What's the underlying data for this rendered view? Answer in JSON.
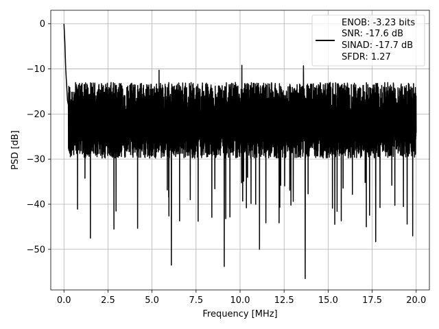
{
  "chart_data": {
    "type": "line",
    "title": "",
    "xlabel": "Frequency [MHz]",
    "ylabel": "PSD [dB]",
    "xlim": [
      -0.75,
      20.75
    ],
    "ylim": [
      -59,
      3
    ],
    "xticks": [
      0.0,
      2.5,
      5.0,
      7.5,
      10.0,
      12.5,
      15.0,
      17.5,
      20.0
    ],
    "xtick_labels": [
      "0.0",
      "2.5",
      "5.0",
      "7.5",
      "10.0",
      "12.5",
      "15.0",
      "17.5",
      "20.0"
    ],
    "yticks": [
      0,
      -10,
      -20,
      -30,
      -40,
      -50
    ],
    "ytick_labels": [
      "0",
      "−10",
      "−20",
      "−30",
      "−40",
      "−50"
    ],
    "grid": true,
    "legend_position": "top-right",
    "legend_lines": [
      "ENOB: -3.23 bits",
      "SNR: -17.6 dB",
      "SINAD: -17.7 dB",
      "SFDR: 1.27"
    ],
    "line_color": "#000000",
    "series": [
      {
        "x_start": 0.0,
        "x_end": 20.0,
        "noise_floor_db": -22,
        "upper_envelope_db": -13,
        "lower_envelope_db": -30,
        "peaks": [
          [
            0.0,
            0.0
          ],
          [
            0.05,
            -4
          ],
          [
            0.1,
            -10
          ],
          [
            0.2,
            -17
          ],
          [
            5.4,
            -10.3
          ],
          [
            13.6,
            -9.3
          ],
          [
            10.1,
            -9.2
          ]
        ],
        "dips": [
          [
            1.5,
            -47.5
          ],
          [
            6.1,
            -53.5
          ],
          [
            9.1,
            -53.8
          ],
          [
            11.1,
            -50
          ],
          [
            13.7,
            -56.5
          ],
          [
            13.6,
            -48.5
          ],
          [
            17.7,
            -48.3
          ],
          [
            19.8,
            -47
          ]
        ]
      }
    ]
  }
}
